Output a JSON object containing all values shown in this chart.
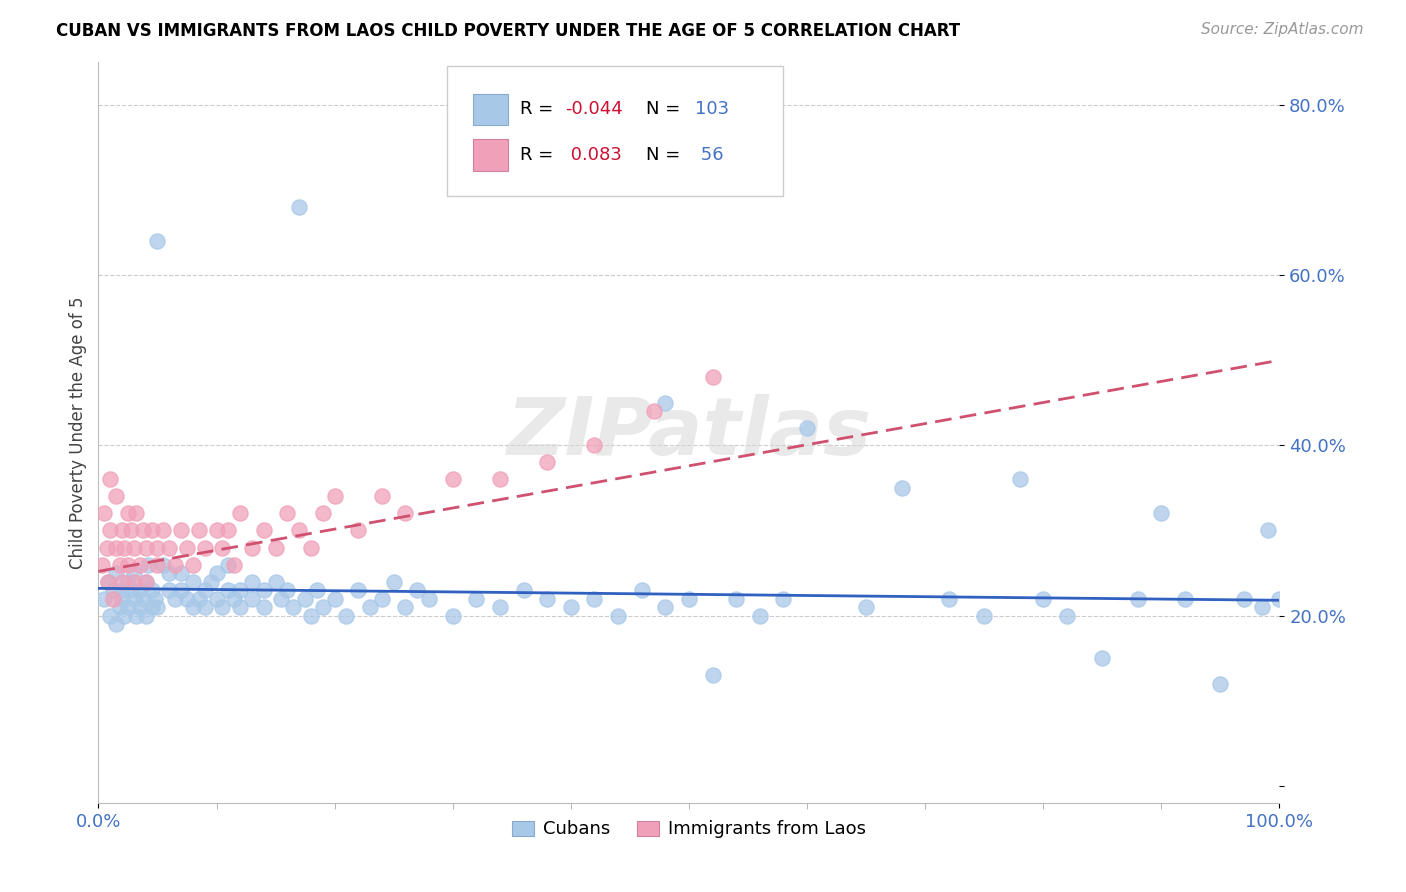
{
  "title": "CUBAN VS IMMIGRANTS FROM LAOS CHILD POVERTY UNDER THE AGE OF 5 CORRELATION CHART",
  "source": "Source: ZipAtlas.com",
  "ylabel": "Child Poverty Under the Age of 5",
  "xlim": [
    0.0,
    1.0
  ],
  "ylim": [
    -0.02,
    0.85
  ],
  "y_ticks": [
    0.0,
    0.2,
    0.4,
    0.6,
    0.8
  ],
  "y_tick_labels": [
    "",
    "20.0%",
    "40.0%",
    "60.0%",
    "80.0%"
  ],
  "color_blue": "#a8c8e8",
  "color_pink": "#f0a0b8",
  "color_blue_line": "#3060c0",
  "color_pink_line": "#d05070",
  "color_axis_text": "#4472c4",
  "legend_label1": "Cubans",
  "legend_label2": "Immigrants from Laos",
  "watermark": "ZIPatlas",
  "R_cubans": "-0.044",
  "N_cubans": "103",
  "R_laos": "0.083",
  "N_laos": "56",
  "blue_trend": [
    0.0,
    0.232,
    1.0,
    0.218
  ],
  "pink_trend": [
    0.0,
    0.252,
    1.0,
    0.5
  ],
  "cubans_x": [
    0.005,
    0.008,
    0.01,
    0.012,
    0.015,
    0.015,
    0.018,
    0.02,
    0.02,
    0.022,
    0.025,
    0.025,
    0.028,
    0.03,
    0.03,
    0.032,
    0.035,
    0.035,
    0.038,
    0.04,
    0.04,
    0.042,
    0.045,
    0.045,
    0.048,
    0.05,
    0.05,
    0.055,
    0.06,
    0.06,
    0.065,
    0.07,
    0.07,
    0.075,
    0.08,
    0.08,
    0.085,
    0.09,
    0.09,
    0.095,
    0.1,
    0.1,
    0.105,
    0.11,
    0.11,
    0.115,
    0.12,
    0.12,
    0.13,
    0.13,
    0.14,
    0.14,
    0.15,
    0.155,
    0.16,
    0.165,
    0.17,
    0.175,
    0.18,
    0.185,
    0.19,
    0.2,
    0.21,
    0.22,
    0.23,
    0.24,
    0.25,
    0.26,
    0.27,
    0.28,
    0.3,
    0.32,
    0.34,
    0.36,
    0.38,
    0.4,
    0.42,
    0.44,
    0.46,
    0.48,
    0.5,
    0.52,
    0.54,
    0.48,
    0.56,
    0.58,
    0.6,
    0.65,
    0.68,
    0.72,
    0.75,
    0.78,
    0.8,
    0.82,
    0.85,
    0.88,
    0.9,
    0.92,
    0.95,
    0.97,
    0.985,
    0.99,
    1.0
  ],
  "cubans_y": [
    0.22,
    0.24,
    0.2,
    0.23,
    0.19,
    0.25,
    0.21,
    0.22,
    0.23,
    0.2,
    0.24,
    0.21,
    0.23,
    0.22,
    0.25,
    0.2,
    0.23,
    0.21,
    0.22,
    0.24,
    0.2,
    0.26,
    0.21,
    0.23,
    0.22,
    0.64,
    0.21,
    0.26,
    0.23,
    0.25,
    0.22,
    0.23,
    0.25,
    0.22,
    0.21,
    0.24,
    0.22,
    0.23,
    0.21,
    0.24,
    0.22,
    0.25,
    0.21,
    0.23,
    0.26,
    0.22,
    0.23,
    0.21,
    0.24,
    0.22,
    0.23,
    0.21,
    0.24,
    0.22,
    0.23,
    0.21,
    0.68,
    0.22,
    0.2,
    0.23,
    0.21,
    0.22,
    0.2,
    0.23,
    0.21,
    0.22,
    0.24,
    0.21,
    0.23,
    0.22,
    0.2,
    0.22,
    0.21,
    0.23,
    0.22,
    0.21,
    0.22,
    0.2,
    0.23,
    0.21,
    0.22,
    0.13,
    0.22,
    0.45,
    0.2,
    0.22,
    0.42,
    0.21,
    0.35,
    0.22,
    0.2,
    0.36,
    0.22,
    0.2,
    0.15,
    0.22,
    0.32,
    0.22,
    0.12,
    0.22,
    0.21,
    0.3,
    0.22
  ],
  "laos_x": [
    0.003,
    0.005,
    0.007,
    0.008,
    0.01,
    0.01,
    0.012,
    0.015,
    0.015,
    0.018,
    0.02,
    0.02,
    0.022,
    0.025,
    0.025,
    0.028,
    0.03,
    0.03,
    0.032,
    0.035,
    0.038,
    0.04,
    0.04,
    0.045,
    0.05,
    0.05,
    0.055,
    0.06,
    0.065,
    0.07,
    0.075,
    0.08,
    0.085,
    0.09,
    0.1,
    0.105,
    0.11,
    0.115,
    0.12,
    0.13,
    0.14,
    0.15,
    0.16,
    0.17,
    0.18,
    0.19,
    0.2,
    0.22,
    0.24,
    0.26,
    0.3,
    0.34,
    0.38,
    0.42,
    0.47,
    0.52
  ],
  "laos_y": [
    0.26,
    0.32,
    0.28,
    0.24,
    0.3,
    0.36,
    0.22,
    0.28,
    0.34,
    0.26,
    0.3,
    0.24,
    0.28,
    0.32,
    0.26,
    0.3,
    0.28,
    0.24,
    0.32,
    0.26,
    0.3,
    0.28,
    0.24,
    0.3,
    0.28,
    0.26,
    0.3,
    0.28,
    0.26,
    0.3,
    0.28,
    0.26,
    0.3,
    0.28,
    0.3,
    0.28,
    0.3,
    0.26,
    0.32,
    0.28,
    0.3,
    0.28,
    0.32,
    0.3,
    0.28,
    0.32,
    0.34,
    0.3,
    0.34,
    0.32,
    0.36,
    0.36,
    0.38,
    0.4,
    0.44,
    0.48
  ]
}
